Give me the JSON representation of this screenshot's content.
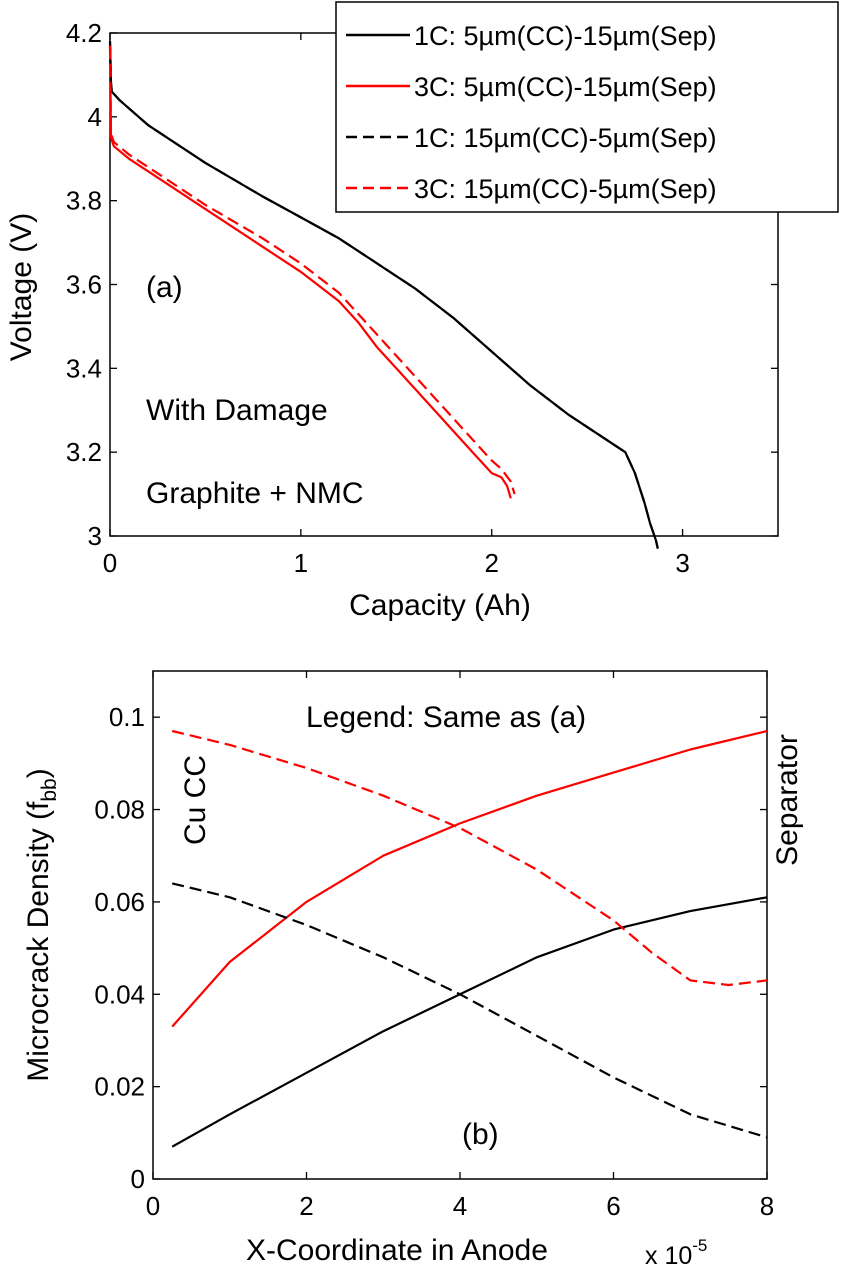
{
  "chart_data": [
    {
      "type": "line",
      "panel_label": "(a)",
      "xlabel": "Capacity (Ah)",
      "ylabel": "Voltage (V)",
      "xlim": [
        0,
        3.5
      ],
      "ylim": [
        3,
        4.2
      ],
      "xticks": [
        "0",
        "1",
        "2",
        "3"
      ],
      "yticks": [
        "3",
        "3.2",
        "3.4",
        "3.6",
        "3.8",
        "4",
        "4.2"
      ],
      "annotations": [
        "With Damage",
        "Graphite + NMC"
      ],
      "legend_position": "top-right",
      "series": [
        {
          "name": "1C: 5µm(CC)-15µm(Sep)",
          "color": "#000000",
          "dash": "solid",
          "x": [
            0,
            0.005,
            0.01,
            0.05,
            0.2,
            0.5,
            0.8,
            1.0,
            1.2,
            1.4,
            1.6,
            1.8,
            2.0,
            2.2,
            2.4,
            2.6,
            2.7,
            2.75,
            2.8,
            2.83,
            2.86,
            2.87
          ],
          "y": [
            4.18,
            4.08,
            4.06,
            4.04,
            3.98,
            3.89,
            3.81,
            3.76,
            3.71,
            3.65,
            3.59,
            3.52,
            3.44,
            3.36,
            3.29,
            3.23,
            3.2,
            3.15,
            3.08,
            3.03,
            2.99,
            2.97
          ]
        },
        {
          "name": "3C: 5µm(CC)-15µm(Sep)",
          "color": "#ff0000",
          "dash": "solid",
          "x": [
            0,
            0.005,
            0.02,
            0.1,
            0.3,
            0.5,
            0.8,
            1.0,
            1.2,
            1.3,
            1.4,
            1.5,
            1.6,
            1.7,
            1.8,
            1.9,
            2.0,
            2.05,
            2.08,
            2.1
          ],
          "y": [
            4.17,
            3.95,
            3.93,
            3.9,
            3.84,
            3.78,
            3.69,
            3.63,
            3.56,
            3.51,
            3.45,
            3.4,
            3.35,
            3.3,
            3.25,
            3.2,
            3.15,
            3.14,
            3.12,
            3.09
          ]
        },
        {
          "name": "1C: 15µm(CC)-5µm(Sep)",
          "color": "#000000",
          "dash": "dashed",
          "x": [
            0,
            0.005,
            0.01,
            0.05,
            0.2,
            0.5,
            0.8,
            1.0,
            1.2,
            1.4,
            1.6,
            1.8,
            2.0,
            2.2,
            2.4,
            2.6,
            2.7,
            2.75,
            2.8,
            2.83,
            2.86,
            2.87
          ],
          "y": [
            4.18,
            4.08,
            4.06,
            4.04,
            3.98,
            3.89,
            3.81,
            3.76,
            3.71,
            3.65,
            3.59,
            3.52,
            3.44,
            3.36,
            3.29,
            3.23,
            3.2,
            3.15,
            3.08,
            3.03,
            2.99,
            2.97
          ]
        },
        {
          "name": "3C: 15µm(CC)-5µm(Sep)",
          "color": "#ff0000",
          "dash": "dashed",
          "x": [
            0,
            0.005,
            0.02,
            0.1,
            0.3,
            0.5,
            0.8,
            1.0,
            1.2,
            1.3,
            1.4,
            1.5,
            1.6,
            1.7,
            1.8,
            1.9,
            2.0,
            2.05,
            2.1,
            2.12
          ],
          "y": [
            4.17,
            3.96,
            3.94,
            3.91,
            3.85,
            3.79,
            3.71,
            3.65,
            3.58,
            3.53,
            3.48,
            3.43,
            3.38,
            3.33,
            3.28,
            3.23,
            3.18,
            3.16,
            3.13,
            3.1
          ]
        }
      ]
    },
    {
      "type": "line",
      "panel_label": "(b)",
      "xlabel": "X-Coordinate in Anode",
      "x_multiplier": "x 10",
      "x_multiplier_exp": "-5",
      "ylabel": "Microcrack Density (f",
      "ylabel_sub": "bb",
      "ylabel_end": ")",
      "xlim": [
        0,
        8
      ],
      "ylim": [
        0,
        0.11
      ],
      "xticks": [
        "0",
        "2",
        "4",
        "6",
        "8"
      ],
      "yticks": [
        "0",
        "0.02",
        "0.04",
        "0.06",
        "0.08",
        "0.1"
      ],
      "annotations": [
        "Legend: Same as (a)",
        "Cu CC",
        "Separator"
      ],
      "series": [
        {
          "name": "1C: 5µm(CC)-15µm(Sep)",
          "color": "#000000",
          "dash": "solid",
          "x": [
            0.25,
            1,
            2,
            3,
            4,
            5,
            6,
            7,
            8
          ],
          "y": [
            0.007,
            0.014,
            0.023,
            0.032,
            0.04,
            0.048,
            0.054,
            0.058,
            0.061
          ]
        },
        {
          "name": "3C: 5µm(CC)-15µm(Sep)",
          "color": "#ff0000",
          "dash": "solid",
          "x": [
            0.25,
            1,
            2,
            3,
            4,
            5,
            6,
            7,
            8
          ],
          "y": [
            0.033,
            0.047,
            0.06,
            0.07,
            0.077,
            0.083,
            0.088,
            0.093,
            0.097
          ]
        },
        {
          "name": "1C: 15µm(CC)-5µm(Sep)",
          "color": "#000000",
          "dash": "dashed",
          "x": [
            0.25,
            1,
            2,
            3,
            4,
            5,
            6,
            7,
            8
          ],
          "y": [
            0.064,
            0.061,
            0.055,
            0.048,
            0.04,
            0.031,
            0.022,
            0.014,
            0.009
          ]
        },
        {
          "name": "3C: 15µm(CC)-5µm(Sep)",
          "color": "#ff0000",
          "dash": "dashed",
          "x": [
            0.25,
            1,
            2,
            3,
            4,
            5,
            6,
            6.5,
            7,
            7.5,
            8
          ],
          "y": [
            0.097,
            0.094,
            0.089,
            0.083,
            0.076,
            0.067,
            0.056,
            0.049,
            0.043,
            0.042,
            0.043
          ]
        }
      ]
    }
  ]
}
